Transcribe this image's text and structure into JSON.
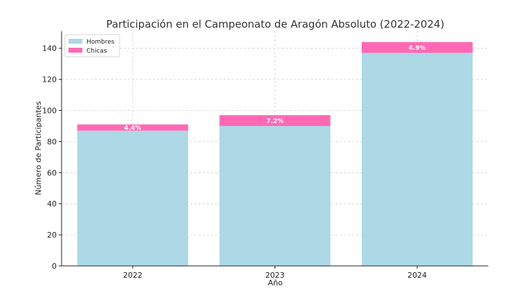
{
  "chart_data": {
    "type": "bar",
    "stacked": true,
    "title": "Participación en el Campeonato de Aragón Absoluto (2022-2024)",
    "xlabel": "Año",
    "ylabel": "Número de Participantes",
    "categories": [
      "2022",
      "2023",
      "2024"
    ],
    "series": [
      {
        "name": "Hombres",
        "values": [
          87,
          90,
          137
        ],
        "color": "#add8e6"
      },
      {
        "name": "Chicas",
        "values": [
          4,
          7,
          7
        ],
        "color": "#ff69b4"
      }
    ],
    "data_labels": [
      "4.4%",
      "7.2%",
      "4.9%"
    ],
    "ylim": [
      0,
      151
    ],
    "yticks": [
      0,
      20,
      40,
      60,
      80,
      100,
      120,
      140
    ],
    "grid": true,
    "legend_position": "top-left"
  }
}
